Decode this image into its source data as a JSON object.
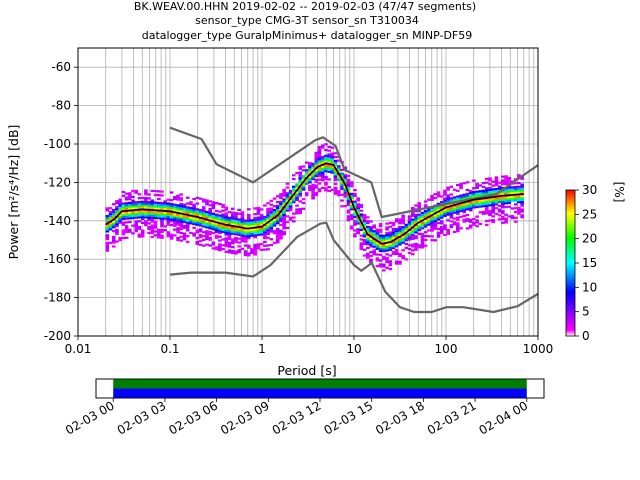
{
  "title": {
    "line1": "BK.WEAV.00.HHN   2019-02-02 -- 2019-02-03  (47/47 segments)",
    "line2": "sensor_type CMG-3T sensor_sn T310034",
    "line3": "datalogger_type GuralpMinimus+ datalogger_sn MINP-DF59"
  },
  "chart_data": [
    {
      "type": "heatmap",
      "title": "BK.WEAV.00.HHN   2019-02-02 -- 2019-02-03  (47/47 segments)",
      "xlabel": "Period [s]",
      "ylabel": "Power [m²/s⁴/Hz] [dB]",
      "xscale": "log",
      "xlim": [
        0.01,
        1000
      ],
      "ylim": [
        -200,
        -50
      ],
      "x_ticks": [
        "0.01",
        "0.1",
        "1",
        "10",
        "100",
        "1000"
      ],
      "y_ticks": [
        "-60",
        "-80",
        "-100",
        "-120",
        "-140",
        "-160",
        "-180",
        "-200"
      ],
      "grid": true,
      "colorbar": {
        "label": "[%]",
        "ticks": [
          "0",
          "5",
          "10",
          "15",
          "20",
          "25",
          "30"
        ],
        "range": [
          0,
          30
        ],
        "colors": [
          "#ffffff",
          "#ff00ff",
          "#0000ff",
          "#00ffff",
          "#00ff00",
          "#ffff00",
          "#ff0000"
        ]
      },
      "series": [
        {
          "style": "noise-model-high",
          "color": "#666666",
          "x": [
            0.1,
            0.22,
            0.32,
            0.8,
            3.8,
            4.6,
            6.3,
            7.9,
            15.4,
            20,
            354.8,
            1000
          ],
          "y": [
            -91.5,
            -97.4,
            -110.5,
            -120,
            -98,
            -96.5,
            -101,
            -113.5,
            -120,
            -138,
            -126,
            -111
          ]
        },
        {
          "style": "noise-model-low",
          "color": "#666666",
          "x": [
            0.1,
            0.17,
            0.4,
            0.8,
            1.24,
            2.4,
            4.3,
            5,
            6,
            10,
            12,
            15.6,
            21.9,
            31.6,
            45,
            70,
            101,
            154,
            328,
            600,
            1000
          ],
          "y": [
            -168,
            -167,
            -167,
            -169,
            -163,
            -148.5,
            -141.5,
            -141,
            -150,
            -163,
            -166,
            -162,
            -177,
            -185,
            -187.5,
            -187.5,
            -185,
            -185,
            -187.5,
            -184.5,
            -178
          ]
        },
        {
          "style": "mode",
          "color": "#000000",
          "x": [
            0.02,
            0.025,
            0.03,
            0.05,
            0.1,
            0.2,
            0.4,
            0.7,
            1,
            1.5,
            2,
            3,
            4,
            5,
            6,
            8,
            10,
            14,
            20,
            25,
            35,
            50,
            100,
            200,
            400,
            700
          ],
          "y": [
            -142,
            -139,
            -135,
            -134,
            -135,
            -138,
            -142,
            -144,
            -143,
            -137,
            -129,
            -118,
            -112,
            -110,
            -111,
            -121,
            -133,
            -147,
            -152,
            -151,
            -147,
            -141,
            -133,
            -129,
            -127,
            -126
          ]
        }
      ]
    },
    {
      "type": "bar",
      "title": "",
      "x_ticks": [
        "02-03 00",
        "02-03 03",
        "02-03 06",
        "02-03 09",
        "02-03 12",
        "02-03 15",
        "02-03 18",
        "02-03 21",
        "02-04 00"
      ],
      "xlim": [
        "02-02 23:00",
        "02-04 01:00"
      ],
      "bands": [
        {
          "color": "#008000",
          "start": "02-03 00",
          "end": "02-04 00"
        },
        {
          "color": "#0000ff",
          "start": "02-03 00",
          "end": "02-04 00"
        }
      ]
    }
  ]
}
